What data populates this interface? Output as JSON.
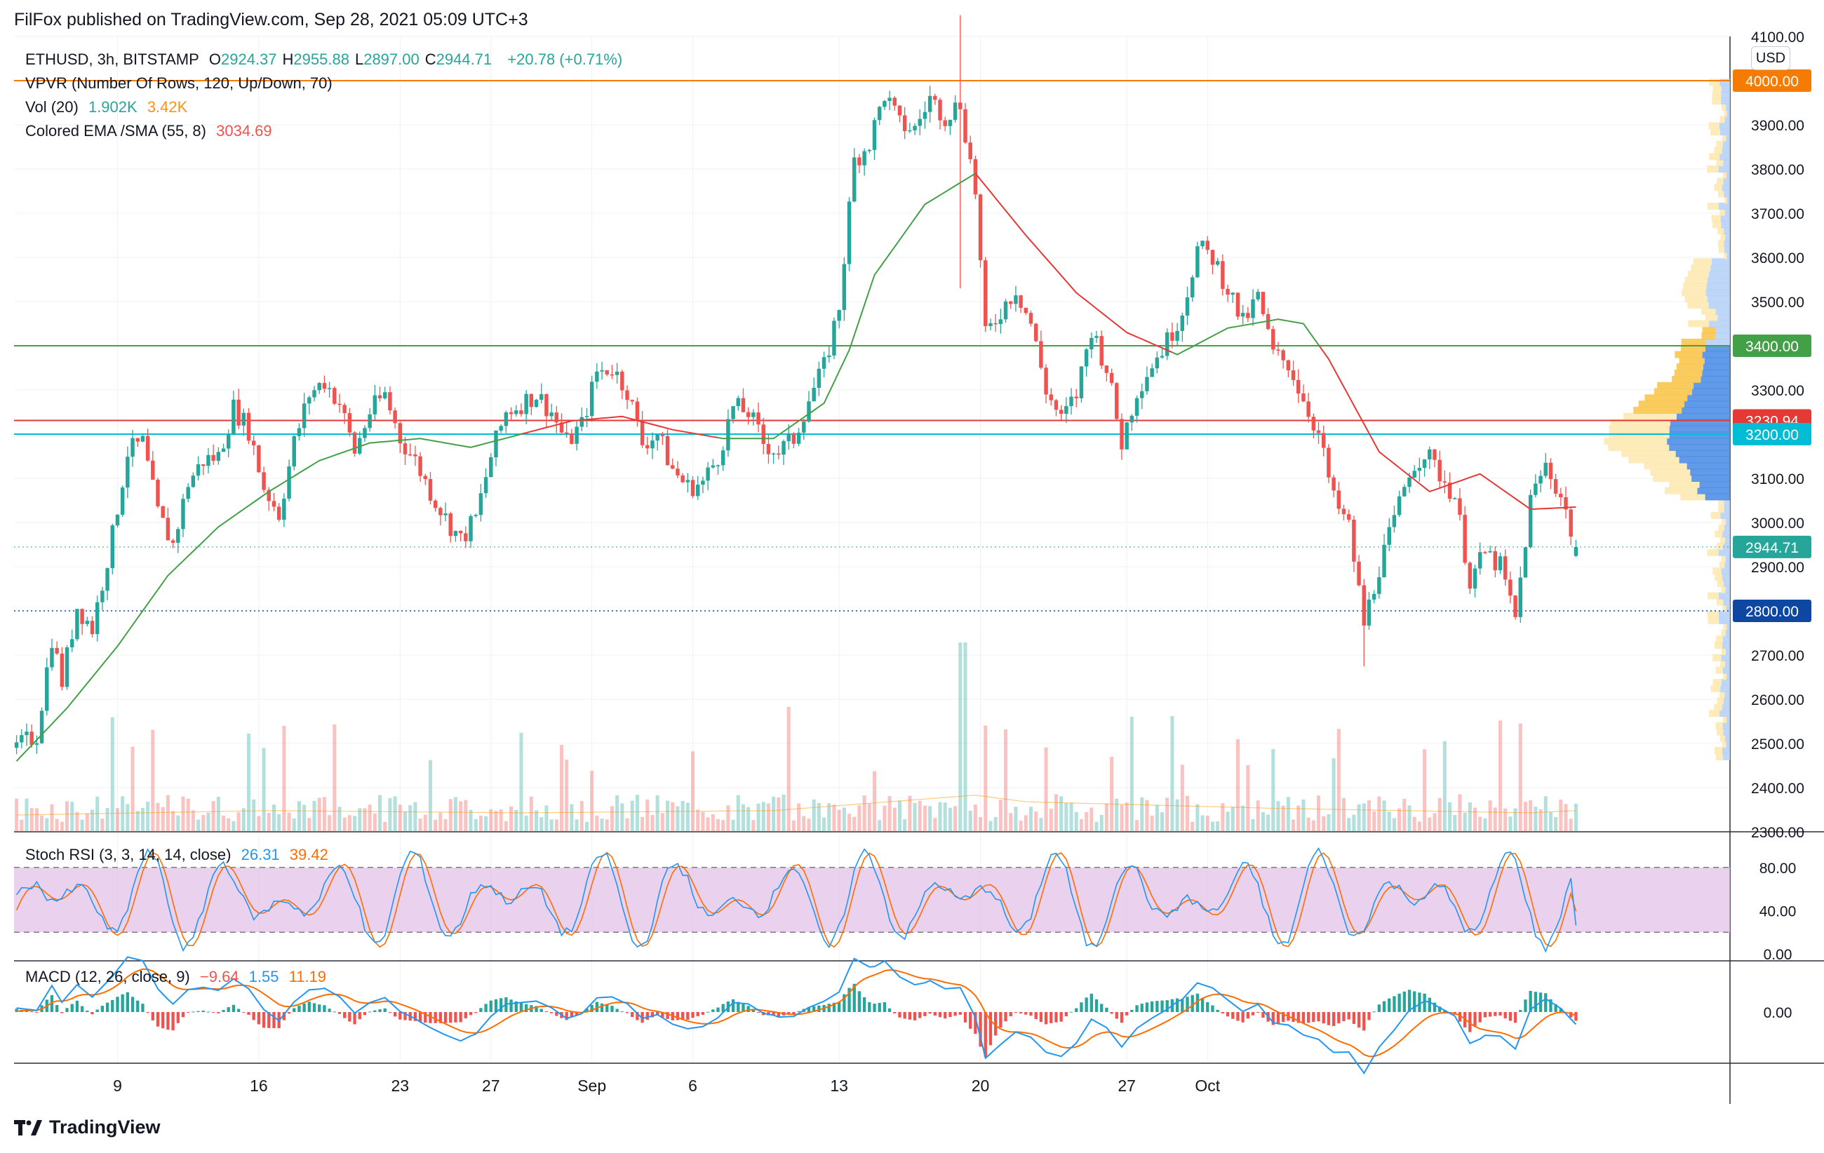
{
  "header": {
    "published_by": "FilFox published on TradingView.com, Sep 28, 2021 05:09 UTC+3"
  },
  "legend": {
    "symbol": "ETHUSD, 3h, BITSTAMP",
    "open_label": "O",
    "open": "2924.37",
    "high_label": "H",
    "high": "2955.88",
    "low_label": "L",
    "low": "2897.00",
    "close_label": "C",
    "close": "2944.71",
    "change": "+20.78 (+0.71%)",
    "vpvr": "VPVR (Number Of Rows, 120, Up/Down, 70)",
    "vol_label": "Vol (20)",
    "vol_value": "1.902K",
    "vol_ma": "3.42K",
    "ema_label": "Colored EMA /SMA (55, 8)",
    "ema_value": "3034.69"
  },
  "currency": "USD",
  "price_axis": {
    "ticks": [
      "4100.00",
      "4000.00",
      "3900.00",
      "3800.00",
      "3700.00",
      "3600.00",
      "3500.00",
      "3400.00",
      "3300.00",
      "3200.00",
      "3100.00",
      "3000.00",
      "2900.00",
      "2800.00",
      "2700.00",
      "2600.00",
      "2500.00",
      "2400.00",
      "2300.00"
    ],
    "labels": [
      {
        "text": "4000.00",
        "value": 4000,
        "color": "#f57c00"
      },
      {
        "text": "3400.00",
        "value": 3400,
        "color": "#43a047"
      },
      {
        "text": "3230.94",
        "value": 3230.94,
        "color": "#e53935"
      },
      {
        "text": "3200.00",
        "value": 3200,
        "color": "#00bcd4"
      },
      {
        "text": "2944.71",
        "value": 2944.71,
        "color": "#26a69a"
      },
      {
        "text": "2800.00",
        "value": 2800,
        "color": "#0d47a1"
      }
    ]
  },
  "hlines": [
    {
      "value": 4000,
      "color": "#f57c00"
    },
    {
      "value": 3400,
      "color": "#43a047"
    },
    {
      "value": 3230.94,
      "color": "#e53935"
    },
    {
      "value": 3200,
      "color": "#00bcd4"
    }
  ],
  "time_axis": {
    "labels": [
      "9",
      "16",
      "23",
      "27",
      "Sep",
      "6",
      "13",
      "20",
      "27",
      "Oct"
    ]
  },
  "stoch_rsi": {
    "label": "Stoch RSI (3, 3, 14, 14, close)",
    "k": "26.31",
    "d": "39.42",
    "ticks": [
      "80.00",
      "40.00",
      "0.00"
    ]
  },
  "macd": {
    "label": "MACD (12, 26, close, 9)",
    "hist": "−9.64",
    "macd": "1.55",
    "signal": "11.19",
    "ticks": [
      "0.00"
    ]
  },
  "footer": {
    "brand": "TradingView"
  },
  "chart_data": {
    "type": "candlestick",
    "symbol": "ETHUSD",
    "interval": "3h",
    "exchange": "BITSTAMP",
    "ylim": [
      2300,
      4100
    ],
    "x_labels": [
      "9",
      "16",
      "23",
      "27",
      "Sep",
      "6",
      "13",
      "20",
      "27",
      "Oct"
    ],
    "price_path": [
      [
        0,
        2490
      ],
      [
        4,
        2520
      ],
      [
        7,
        2740
      ],
      [
        9,
        2640
      ],
      [
        12,
        2810
      ],
      [
        15,
        2760
      ],
      [
        19,
        2970
      ],
      [
        22,
        3160
      ],
      [
        25,
        3180
      ],
      [
        28,
        3020
      ],
      [
        31,
        2950
      ],
      [
        34,
        3090
      ],
      [
        37,
        3140
      ],
      [
        40,
        3150
      ],
      [
        43,
        3260
      ],
      [
        46,
        3210
      ],
      [
        49,
        3080
      ],
      [
        52,
        3020
      ],
      [
        55,
        3180
      ],
      [
        58,
        3290
      ],
      [
        61,
        3320
      ],
      [
        64,
        3270
      ],
      [
        67,
        3160
      ],
      [
        70,
        3250
      ],
      [
        73,
        3290
      ],
      [
        76,
        3190
      ],
      [
        79,
        3140
      ],
      [
        82,
        3070
      ],
      [
        85,
        3010
      ],
      [
        88,
        2960
      ],
      [
        91,
        3010
      ],
      [
        94,
        3150
      ],
      [
        97,
        3250
      ],
      [
        100,
        3270
      ],
      [
        103,
        3290
      ],
      [
        106,
        3250
      ],
      [
        109,
        3180
      ],
      [
        112,
        3220
      ],
      [
        115,
        3340
      ],
      [
        118,
        3350
      ],
      [
        121,
        3300
      ],
      [
        124,
        3180
      ],
      [
        127,
        3200
      ],
      [
        130,
        3120
      ],
      [
        133,
        3080
      ],
      [
        136,
        3090
      ],
      [
        139,
        3150
      ],
      [
        142,
        3260
      ],
      [
        145,
        3250
      ],
      [
        148,
        3180
      ],
      [
        151,
        3160
      ],
      [
        154,
        3190
      ],
      [
        157,
        3280
      ],
      [
        160,
        3350
      ],
      [
        163,
        3490
      ],
      [
        166,
        3820
      ],
      [
        169,
        3860
      ],
      [
        172,
        3970
      ],
      [
        175,
        3900
      ],
      [
        178,
        3890
      ],
      [
        181,
        3960
      ],
      [
        184,
        3920
      ],
      [
        187,
        3950
      ],
      [
        190,
        3750
      ],
      [
        192,
        3420
      ],
      [
        195,
        3480
      ],
      [
        198,
        3530
      ],
      [
        201,
        3450
      ],
      [
        204,
        3300
      ],
      [
        207,
        3230
      ],
      [
        210,
        3290
      ],
      [
        213,
        3440
      ],
      [
        216,
        3350
      ],
      [
        219,
        3180
      ],
      [
        222,
        3300
      ],
      [
        225,
        3360
      ],
      [
        228,
        3410
      ],
      [
        231,
        3480
      ],
      [
        234,
        3620
      ],
      [
        237,
        3600
      ],
      [
        240,
        3530
      ],
      [
        243,
        3450
      ],
      [
        246,
        3510
      ],
      [
        249,
        3380
      ],
      [
        252,
        3360
      ],
      [
        255,
        3280
      ],
      [
        258,
        3200
      ],
      [
        261,
        3050
      ],
      [
        264,
        2990
      ],
      [
        267,
        2770
      ],
      [
        270,
        2900
      ],
      [
        273,
        3000
      ],
      [
        276,
        3120
      ],
      [
        279,
        3160
      ],
      [
        282,
        3110
      ],
      [
        285,
        3060
      ],
      [
        288,
        2870
      ],
      [
        291,
        2930
      ],
      [
        294,
        2900
      ],
      [
        297,
        2780
      ],
      [
        300,
        3050
      ],
      [
        303,
        3130
      ],
      [
        306,
        3060
      ],
      [
        309,
        2944
      ]
    ],
    "sma_path": [
      [
        0,
        2460
      ],
      [
        10,
        2580
      ],
      [
        20,
        2720
      ],
      [
        30,
        2880
      ],
      [
        40,
        2990
      ],
      [
        50,
        3070
      ],
      [
        60,
        3140
      ],
      [
        70,
        3180
      ],
      [
        80,
        3190
      ],
      [
        90,
        3170
      ],
      [
        100,
        3200
      ],
      [
        110,
        3230
      ],
      [
        120,
        3240
      ],
      [
        130,
        3210
      ],
      [
        140,
        3190
      ],
      [
        150,
        3190
      ],
      [
        160,
        3270
      ],
      [
        165,
        3390
      ],
      [
        170,
        3560
      ],
      [
        180,
        3720
      ],
      [
        190,
        3790
      ],
      [
        200,
        3650
      ],
      [
        210,
        3520
      ],
      [
        220,
        3430
      ],
      [
        230,
        3380
      ],
      [
        240,
        3440
      ],
      [
        250,
        3460
      ],
      [
        255,
        3450
      ],
      [
        260,
        3370
      ],
      [
        270,
        3160
      ],
      [
        280,
        3070
      ],
      [
        290,
        3110
      ],
      [
        300,
        3030
      ],
      [
        309,
        3035
      ]
    ],
    "volume_ma": [
      [
        0,
        2330
      ],
      [
        50,
        2340
      ],
      [
        100,
        2335
      ],
      [
        150,
        2340
      ],
      [
        190,
        2375
      ],
      [
        200,
        2360
      ],
      [
        250,
        2345
      ],
      [
        300,
        2335
      ],
      [
        309,
        2340
      ]
    ]
  }
}
